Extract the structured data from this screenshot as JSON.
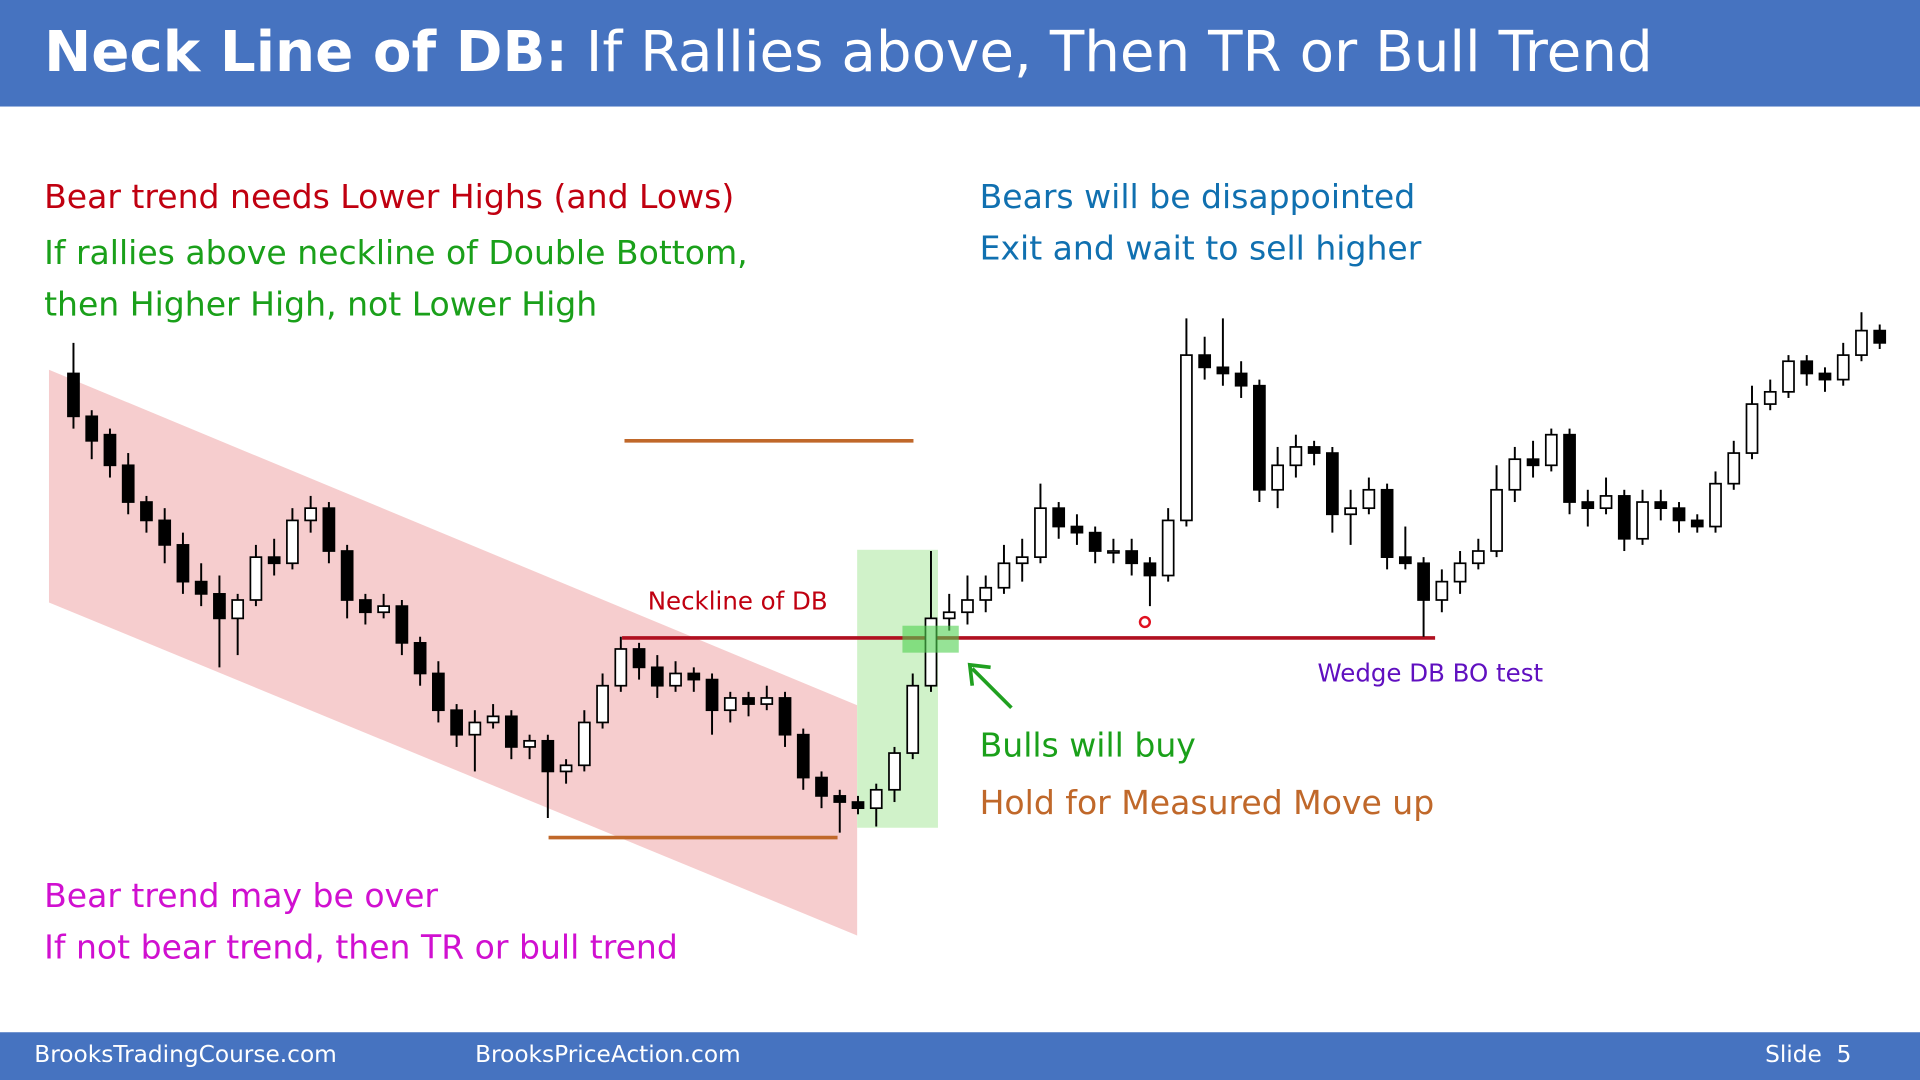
{
  "header": {
    "title_bold": "Neck Line of DB:",
    "title_rest": "If Rallies above, Then TR or Bull Trend"
  },
  "annotations": {
    "bear_lower_highs": "Bear trend needs Lower Highs (and Lows)",
    "rallies_line1": "If rallies above neckline of Double Bottom,",
    "rallies_line2": "then Higher High, not Lower High",
    "bears_disappointed": "Bears will be disappointed",
    "exit_wait": "Exit and wait to sell higher",
    "neckline": "Neckline of DB",
    "wedge_test": "Wedge DB BO test",
    "bulls_buy": "Bulls will buy",
    "hold_mm": "Hold for Measured Move up",
    "bear_over": "Bear trend may be over",
    "not_bear": "If not bear trend, then TR or bull trend"
  },
  "chart_data": {
    "type": "candlestick",
    "ylim": [
      0,
      450
    ],
    "bull_color": "#ffffff",
    "bear_color": "#000000",
    "ohlc": [
      [
        395,
        420,
        350,
        360
      ],
      [
        360,
        365,
        325,
        340
      ],
      [
        345,
        350,
        310,
        320
      ],
      [
        320,
        330,
        280,
        290
      ],
      [
        290,
        295,
        265,
        275
      ],
      [
        275,
        285,
        240,
        255
      ],
      [
        255,
        265,
        215,
        225
      ],
      [
        225,
        240,
        205,
        215
      ],
      [
        215,
        230,
        155,
        195
      ],
      [
        195,
        215,
        165,
        210
      ],
      [
        210,
        255,
        205,
        245
      ],
      [
        245,
        260,
        230,
        240
      ],
      [
        240,
        285,
        235,
        275
      ],
      [
        275,
        295,
        265,
        285
      ],
      [
        285,
        290,
        240,
        250
      ],
      [
        250,
        255,
        195,
        210
      ],
      [
        210,
        215,
        190,
        200
      ],
      [
        200,
        215,
        195,
        205
      ],
      [
        205,
        210,
        165,
        175
      ],
      [
        175,
        180,
        140,
        150
      ],
      [
        150,
        160,
        110,
        120
      ],
      [
        120,
        125,
        90,
        100
      ],
      [
        100,
        120,
        70,
        110
      ],
      [
        110,
        125,
        105,
        115
      ],
      [
        115,
        120,
        80,
        90
      ],
      [
        90,
        100,
        80,
        95
      ],
      [
        95,
        100,
        32,
        70
      ],
      [
        70,
        80,
        60,
        75
      ],
      [
        75,
        120,
        70,
        110
      ],
      [
        110,
        150,
        105,
        140
      ],
      [
        140,
        180,
        135,
        170
      ],
      [
        170,
        175,
        145,
        155
      ],
      [
        155,
        165,
        130,
        140
      ],
      [
        140,
        160,
        135,
        150
      ],
      [
        150,
        155,
        135,
        145
      ],
      [
        145,
        150,
        100,
        120
      ],
      [
        120,
        135,
        110,
        130
      ],
      [
        130,
        135,
        115,
        125
      ],
      [
        125,
        140,
        120,
        130
      ],
      [
        130,
        135,
        90,
        100
      ],
      [
        100,
        105,
        55,
        65
      ],
      [
        65,
        70,
        40,
        50
      ],
      [
        50,
        55,
        20,
        45
      ],
      [
        45,
        50,
        35,
        40
      ],
      [
        40,
        60,
        25,
        55
      ],
      [
        55,
        90,
        45,
        85
      ],
      [
        85,
        150,
        80,
        140
      ],
      [
        140,
        250,
        135,
        195
      ],
      [
        195,
        215,
        185,
        200
      ],
      [
        200,
        230,
        190,
        210
      ],
      [
        210,
        230,
        200,
        220
      ],
      [
        220,
        255,
        215,
        240
      ],
      [
        240,
        260,
        225,
        245
      ],
      [
        245,
        305,
        240,
        285
      ],
      [
        285,
        290,
        260,
        270
      ],
      [
        270,
        280,
        255,
        265
      ],
      [
        265,
        270,
        240,
        250
      ],
      [
        250,
        260,
        240,
        250
      ],
      [
        250,
        260,
        230,
        240
      ],
      [
        240,
        245,
        205,
        230
      ],
      [
        230,
        285,
        225,
        275
      ],
      [
        275,
        440,
        270,
        410
      ],
      [
        410,
        425,
        390,
        400
      ],
      [
        400,
        440,
        385,
        395
      ],
      [
        395,
        405,
        375,
        385
      ],
      [
        385,
        390,
        290,
        300
      ],
      [
        300,
        335,
        285,
        320
      ],
      [
        320,
        345,
        310,
        335
      ],
      [
        335,
        340,
        320,
        330
      ],
      [
        330,
        335,
        265,
        280
      ],
      [
        280,
        300,
        255,
        285
      ],
      [
        285,
        310,
        280,
        300
      ],
      [
        300,
        305,
        235,
        245
      ],
      [
        245,
        270,
        235,
        240
      ],
      [
        240,
        245,
        180,
        210
      ],
      [
        210,
        235,
        200,
        225
      ],
      [
        225,
        250,
        215,
        240
      ],
      [
        240,
        260,
        235,
        250
      ],
      [
        250,
        320,
        245,
        300
      ],
      [
        300,
        335,
        290,
        325
      ],
      [
        325,
        340,
        310,
        320
      ],
      [
        320,
        350,
        315,
        345
      ],
      [
        345,
        350,
        280,
        290
      ],
      [
        290,
        300,
        270,
        285
      ],
      [
        285,
        310,
        280,
        295
      ],
      [
        295,
        300,
        250,
        260
      ],
      [
        260,
        300,
        255,
        290
      ],
      [
        290,
        300,
        275,
        285
      ],
      [
        285,
        290,
        265,
        275
      ],
      [
        275,
        280,
        265,
        270
      ],
      [
        270,
        315,
        265,
        305
      ],
      [
        305,
        340,
        300,
        330
      ],
      [
        330,
        385,
        325,
        370
      ],
      [
        370,
        390,
        365,
        380
      ],
      [
        380,
        410,
        375,
        405
      ],
      [
        405,
        410,
        385,
        395
      ],
      [
        395,
        400,
        380,
        390
      ],
      [
        390,
        420,
        385,
        410
      ],
      [
        410,
        445,
        405,
        430
      ],
      [
        430,
        435,
        415,
        420
      ]
    ]
  },
  "footer": {
    "site1": "BrooksTradingCourse.com",
    "site2": "BrooksPriceAction.com",
    "slide": "Slide  5"
  }
}
